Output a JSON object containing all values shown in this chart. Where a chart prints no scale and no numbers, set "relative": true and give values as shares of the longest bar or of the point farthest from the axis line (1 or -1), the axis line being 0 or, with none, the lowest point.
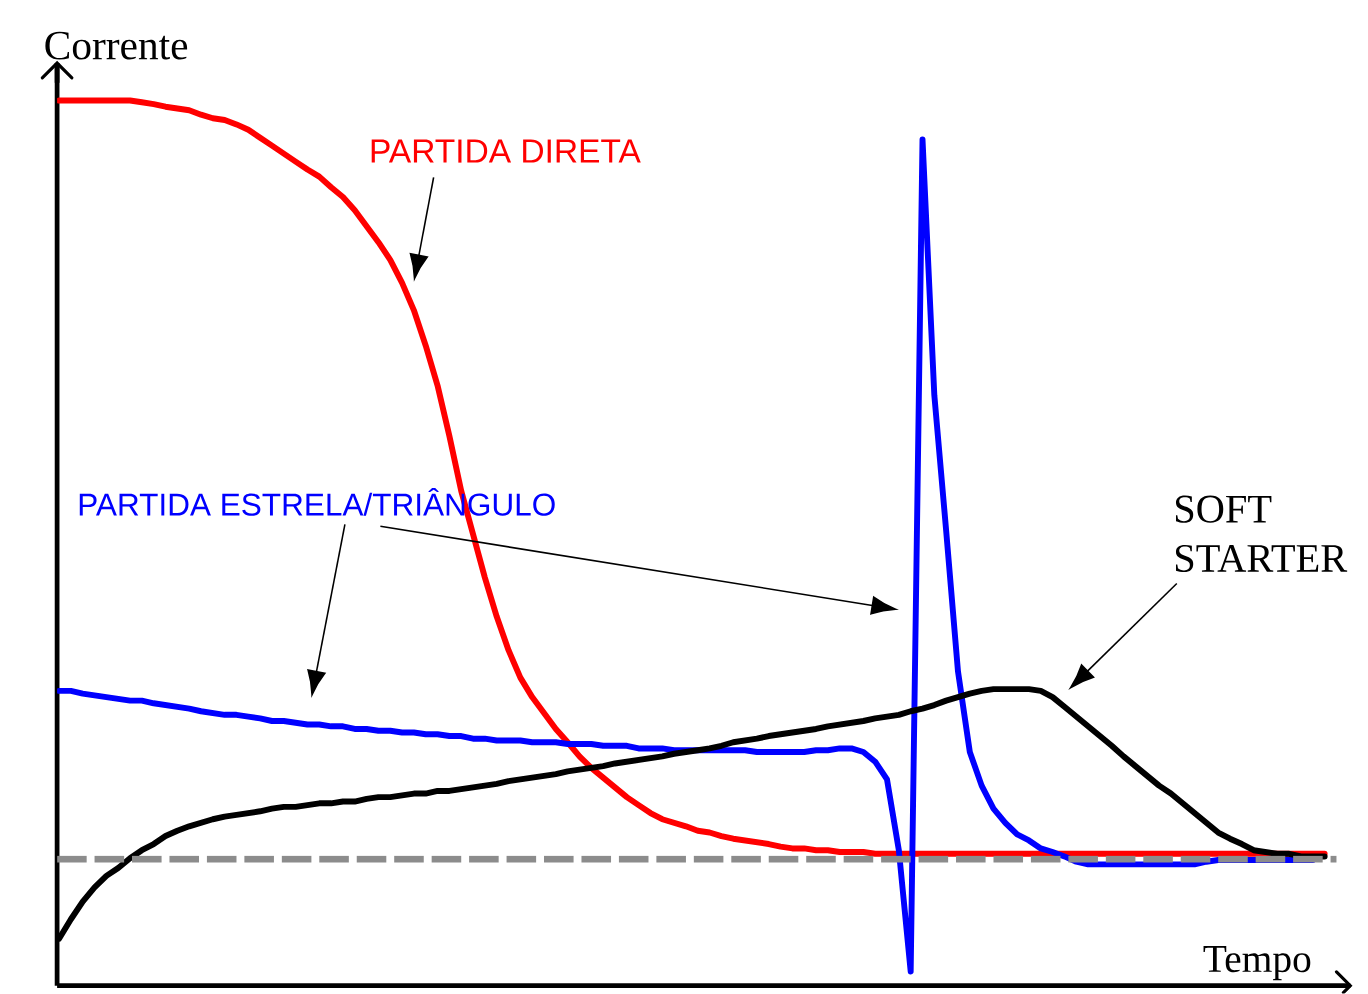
{
  "chart_data": {
    "type": "line",
    "xlabel": "Tempo",
    "ylabel": "Corrente",
    "relative": true,
    "categories": [
      null,
      null,
      null,
      null,
      null,
      null,
      null,
      null,
      null,
      null,
      null,
      null,
      null,
      null,
      null,
      null,
      null,
      null,
      null,
      null,
      null,
      null,
      null,
      null,
      null,
      null,
      null,
      null,
      null,
      null,
      null,
      null,
      null,
      null,
      null,
      null,
      null,
      null,
      null,
      null,
      null,
      null,
      null,
      null,
      null,
      null,
      null,
      null,
      null,
      null,
      null,
      null,
      null,
      null,
      null,
      null,
      null,
      null,
      null,
      null,
      null,
      null,
      null,
      null,
      null,
      null,
      null,
      null,
      null,
      null,
      null,
      null,
      null,
      null,
      null,
      null,
      null,
      null,
      null,
      null,
      null,
      null,
      null,
      null,
      null,
      null,
      null,
      null,
      null,
      null,
      null,
      null,
      null,
      null,
      null,
      null,
      null,
      null,
      null,
      null,
      null,
      null,
      null,
      null,
      null,
      null,
      null,
      null
    ],
    "series": [
      {
        "name": "PARTIDA DIRETA",
        "color": "#ff0000",
        "values": [
          1,
          1,
          1,
          1,
          1,
          1,
          1,
          0.998,
          0.996,
          0.993,
          0.991,
          0.989,
          0.984,
          0.98,
          0.978,
          0.973,
          0.967,
          0.958,
          0.949,
          0.94,
          0.931,
          0.922,
          0.914,
          0.902,
          0.891,
          0.876,
          0.858,
          0.84,
          0.82,
          0.794,
          0.763,
          0.723,
          0.678,
          0.621,
          0.559,
          0.51,
          0.461,
          0.417,
          0.379,
          0.348,
          0.326,
          0.308,
          0.29,
          0.275,
          0.259,
          0.246,
          0.235,
          0.224,
          0.213,
          0.204,
          0.195,
          0.188,
          0.184,
          0.18,
          0.175,
          0.173,
          0.169,
          0.166,
          0.164,
          0.162,
          0.16,
          0.157,
          0.155,
          0.155,
          0.153,
          0.153,
          0.151,
          0.151,
          0.151,
          0.149,
          0.149,
          0.149,
          0.149,
          0.149,
          0.149,
          0.149,
          0.149,
          0.149,
          0.149,
          0.149,
          0.149,
          0.149,
          0.149,
          0.149,
          0.149,
          0.149,
          0.149,
          0.149,
          0.149,
          0.149,
          0.149,
          0.149,
          0.149,
          0.149,
          0.149,
          0.149,
          0.149,
          0.149,
          0.149,
          0.149,
          0.149,
          0.149,
          0.149,
          0.149,
          0.149,
          0.149,
          0.149,
          0.149
        ]
      },
      {
        "name": "PARTIDA ESTRELA/TRIÂNGULO",
        "color": "#0000ff",
        "values": [
          0.333,
          0.333,
          0.33,
          0.328,
          0.326,
          0.324,
          0.322,
          0.322,
          0.319,
          0.317,
          0.315,
          0.313,
          0.31,
          0.308,
          0.306,
          0.306,
          0.304,
          0.302,
          0.299,
          0.299,
          0.297,
          0.295,
          0.295,
          0.293,
          0.293,
          0.29,
          0.29,
          0.288,
          0.288,
          0.286,
          0.286,
          0.284,
          0.284,
          0.282,
          0.282,
          0.279,
          0.279,
          0.277,
          0.277,
          0.277,
          0.275,
          0.275,
          0.275,
          0.273,
          0.273,
          0.273,
          0.271,
          0.271,
          0.271,
          0.268,
          0.268,
          0.268,
          0.266,
          0.266,
          0.266,
          0.266,
          0.266,
          0.266,
          0.266,
          0.264,
          0.264,
          0.264,
          0.264,
          0.264,
          0.266,
          0.266,
          0.268,
          0.268,
          0.264,
          0.253,
          0.233,
          0.153,
          0.016,
          0.956,
          0.667,
          0.514,
          0.355,
          0.264,
          0.226,
          0.2,
          0.184,
          0.171,
          0.164,
          0.155,
          0.151,
          0.146,
          0.14,
          0.137,
          0.137,
          0.137,
          0.137,
          0.137,
          0.137,
          0.137,
          0.137,
          0.137,
          0.137,
          0.14,
          0.142,
          0.142,
          0.142,
          0.142,
          0.142,
          0.142,
          0.142,
          0.142,
          0.142,
          null
        ]
      },
      {
        "name": "SOFT STARTER",
        "color": "#000000",
        "values": [
          0.053,
          0.075,
          0.095,
          0.111,
          0.124,
          0.133,
          0.144,
          0.153,
          0.16,
          0.169,
          0.175,
          0.18,
          0.184,
          0.188,
          0.191,
          0.193,
          0.195,
          0.197,
          0.2,
          0.202,
          0.202,
          0.204,
          0.206,
          0.206,
          0.208,
          0.208,
          0.211,
          0.213,
          0.213,
          0.215,
          0.217,
          0.217,
          0.22,
          0.22,
          0.222,
          0.224,
          0.226,
          0.228,
          0.231,
          0.233,
          0.235,
          0.237,
          0.239,
          0.242,
          0.244,
          0.246,
          0.248,
          0.251,
          0.253,
          0.255,
          0.257,
          0.259,
          0.262,
          0.264,
          0.266,
          0.268,
          0.271,
          0.275,
          0.277,
          0.279,
          0.282,
          0.284,
          0.286,
          0.288,
          0.29,
          0.293,
          0.295,
          0.297,
          0.299,
          0.302,
          0.304,
          0.306,
          0.31,
          0.313,
          0.317,
          0.322,
          0.326,
          0.33,
          0.333,
          0.335,
          0.335,
          0.335,
          0.335,
          0.333,
          0.326,
          0.315,
          0.304,
          0.293,
          0.282,
          0.271,
          0.259,
          0.248,
          0.237,
          0.226,
          0.217,
          0.206,
          0.195,
          0.184,
          0.173,
          0.166,
          0.16,
          0.153,
          0.151,
          0.149,
          0.149,
          0.146,
          0.146,
          0.146
        ]
      }
    ],
    "ref_lines": [
      {
        "axis": "y",
        "value": 0.143,
        "color": "#8c8c8c",
        "line_style": "dashed"
      }
    ]
  }
}
